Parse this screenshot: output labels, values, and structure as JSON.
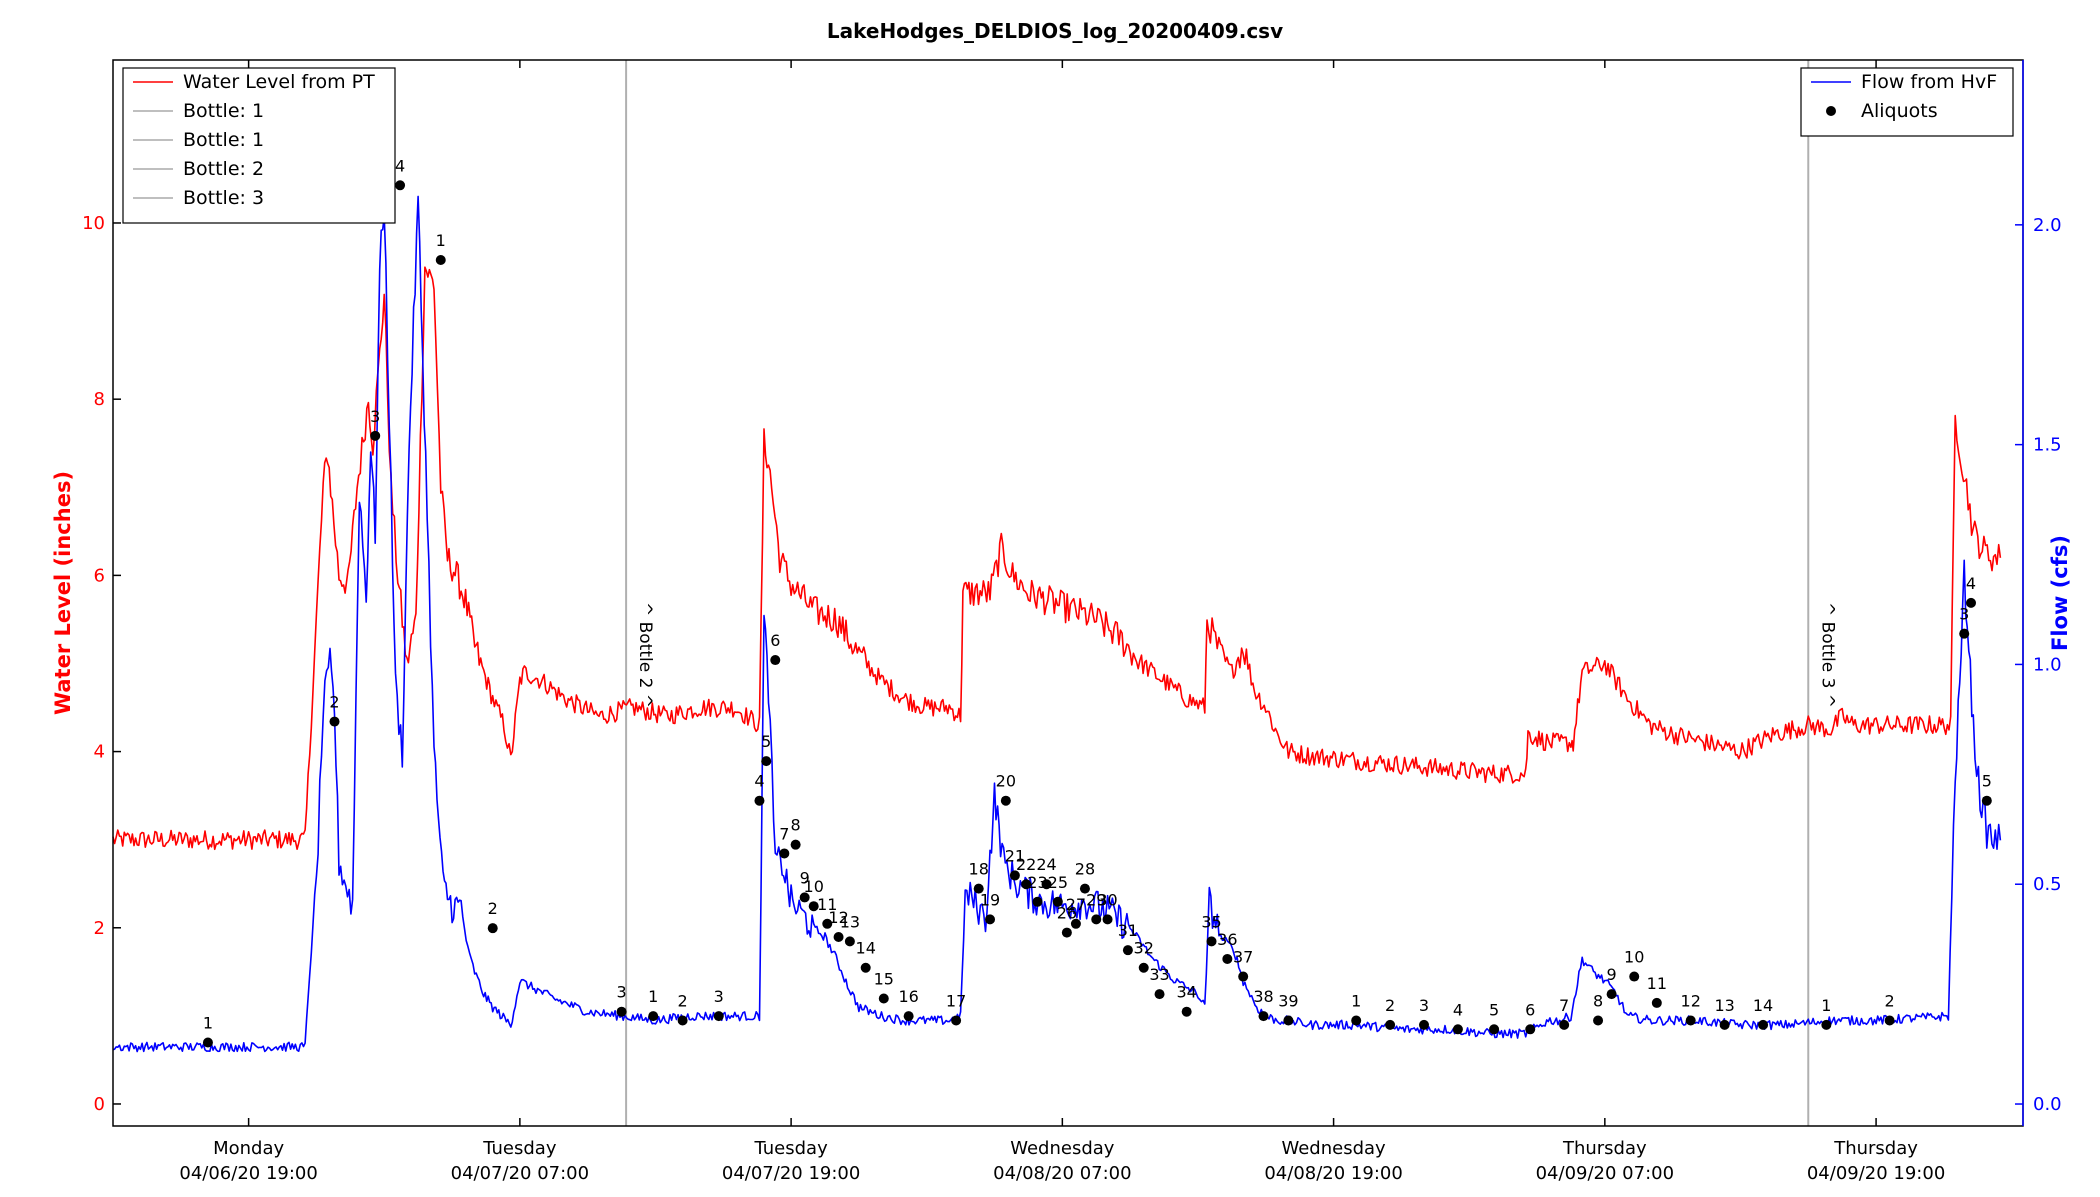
{
  "chart_data": {
    "type": "line",
    "title": "LakeHodges_DELDIOS_log_20200409.csv",
    "xlabel": "",
    "x_range": [
      "04/06/20 13:00",
      "04/10/20 00:30"
    ],
    "x_ticks": [
      {
        "day": "Monday",
        "date": "04/06/20 19:00",
        "t": 6
      },
      {
        "day": "Tuesday",
        "date": "04/07/20 07:00",
        "t": 18
      },
      {
        "day": "Tuesday",
        "date": "04/07/20 19:00",
        "t": 30
      },
      {
        "day": "Wednesday",
        "date": "04/08/20 07:00",
        "t": 42
      },
      {
        "day": "Wednesday",
        "date": "04/08/20 19:00",
        "t": 54
      },
      {
        "day": "Thursday",
        "date": "04/09/20 07:00",
        "t": 66
      },
      {
        "day": "Thursday",
        "date": "04/09/20 19:00",
        "t": 78
      }
    ],
    "y_left": {
      "label": "Water Level (inches)",
      "range": [
        -0.25,
        11.85
      ],
      "ticks": [
        "0",
        "2",
        "4",
        "6",
        "8",
        "10"
      ],
      "color": "#ff0000"
    },
    "y_right": {
      "label": "Flow (cfs)",
      "range": [
        -0.05,
        2.375
      ],
      "ticks": [
        "0.0",
        "0.5",
        "1.0",
        "1.5",
        "2.0"
      ],
      "color": "#0000ff"
    },
    "grid": false,
    "legend_left": {
      "placement": "top-left",
      "entries": [
        {
          "name": "Water Level from PT",
          "color": "#ff0000"
        },
        {
          "name": "Bottle: 1",
          "color": "#aaaaaa"
        },
        {
          "name": "Bottle: 1",
          "color": "#aaaaaa"
        },
        {
          "name": "Bottle: 2",
          "color": "#aaaaaa"
        },
        {
          "name": "Bottle: 3",
          "color": "#aaaaaa"
        }
      ]
    },
    "legend_right": {
      "placement": "top-right",
      "entries": [
        {
          "name": "Flow from HvF",
          "color": "#0000ff"
        },
        {
          "name": "Aliquots",
          "marker": "dot",
          "color": "#000000"
        }
      ]
    },
    "bottle_markers": [
      {
        "label": "^ Bottle 2 ^",
        "t": 22.7
      },
      {
        "label": "^ Bottle 3 ^",
        "t": 75.0
      }
    ],
    "series": [
      {
        "name": "Water Level from PT",
        "axis": "left",
        "color": "#ff0000",
        "t": [
          0,
          8.5,
          8.7,
          9.0,
          9.3,
          9.5,
          9.7,
          10.0,
          10.4,
          10.8,
          11.3,
          11.5,
          11.8,
          12.0,
          12.3,
          12.6,
          13.0,
          13.4,
          13.8,
          14.2,
          14.5,
          14.8,
          15.2,
          15.6,
          16.0,
          16.4,
          16.8,
          17.3,
          17.6,
          18.0,
          18.2,
          19.0,
          20.0,
          21.5,
          23.0,
          24.5,
          26.0,
          27.5,
          28.6,
          28.8,
          29.0,
          29.5,
          30.0,
          31.0,
          32.0,
          33.0,
          34.0,
          35.0,
          36.0,
          37.0,
          37.5,
          37.6,
          38.0,
          38.8,
          39.3,
          39.8,
          40.5,
          41.5,
          42.5,
          43.5,
          44.5,
          45.5,
          46.5,
          47.5,
          48.3,
          48.4,
          49.0,
          49.5,
          50.0,
          50.5,
          51.0,
          51.5,
          52.0,
          53.0,
          55.0,
          57.0,
          59.0,
          61.0,
          62.5,
          62.6,
          63.5,
          64.5,
          64.6,
          65.0,
          66.0,
          67.0,
          68.0,
          69.0,
          70.5,
          72.0,
          73.5,
          75.0,
          76.0,
          76.5,
          77.0,
          78.0,
          79.0,
          81.3,
          81.5,
          81.8,
          82.0,
          82.3,
          82.7,
          83.2,
          83.5
        ],
        "values": [
          3.0,
          3.0,
          4.0,
          5.5,
          7.0,
          7.4,
          6.8,
          6.0,
          5.9,
          7.0,
          8.0,
          7.5,
          8.5,
          9.2,
          7.0,
          6.0,
          5.0,
          5.5,
          9.5,
          9.3,
          7.0,
          6.2,
          6.0,
          5.7,
          5.2,
          4.9,
          4.6,
          4.3,
          3.9,
          4.8,
          4.9,
          4.8,
          4.6,
          4.4,
          4.5,
          4.4,
          4.5,
          4.5,
          4.3,
          7.5,
          7.3,
          6.2,
          5.9,
          5.6,
          5.5,
          5.1,
          4.8,
          4.6,
          4.5,
          4.5,
          4.4,
          5.8,
          5.8,
          5.8,
          6.3,
          6.0,
          5.8,
          5.7,
          5.6,
          5.5,
          5.3,
          5.0,
          4.8,
          4.6,
          4.5,
          5.5,
          5.1,
          4.9,
          5.2,
          4.7,
          4.5,
          4.2,
          4.0,
          3.95,
          3.9,
          3.85,
          3.8,
          3.75,
          3.75,
          4.2,
          4.1,
          4.1,
          4.1,
          4.9,
          5.0,
          4.6,
          4.3,
          4.2,
          4.1,
          4.0,
          4.2,
          4.3,
          4.25,
          4.4,
          4.3,
          4.3,
          4.3,
          4.3,
          7.8,
          7.3,
          7.0,
          6.5,
          6.3,
          6.2,
          6.2
        ]
      },
      {
        "name": "Flow from HvF",
        "axis": "right",
        "color": "#0000ff",
        "t": [
          0,
          8.5,
          8.7,
          9.0,
          9.3,
          9.6,
          9.8,
          10.0,
          10.3,
          10.6,
          10.9,
          11.2,
          11.4,
          11.6,
          11.8,
          12.0,
          12.3,
          12.5,
          12.8,
          13.1,
          13.5,
          13.9,
          14.2,
          14.6,
          15.0,
          15.4,
          15.7,
          16.0,
          16.4,
          16.8,
          17.2,
          17.6,
          18.0,
          19.5,
          21.0,
          22.5,
          24.0,
          25.5,
          27.0,
          28.6,
          28.8,
          29.0,
          29.3,
          29.6,
          30.0,
          30.5,
          31.0,
          31.5,
          32.0,
          32.5,
          33.0,
          34.0,
          35.0,
          36.0,
          37.0,
          37.5,
          37.7,
          38.0,
          38.6,
          39.0,
          39.4,
          40.0,
          41.0,
          42.0,
          43.0,
          44.0,
          45.0,
          46.0,
          47.0,
          48.0,
          48.3,
          48.5,
          49.0,
          49.6,
          50.0,
          50.6,
          51.0,
          51.5,
          52.0,
          53.0,
          55.0,
          57.0,
          59.0,
          61.0,
          62.5,
          63.5,
          64.0,
          64.5,
          65.0,
          65.5,
          66.0,
          66.5,
          67.0,
          68.0,
          70.0,
          72.0,
          74.0,
          76.0,
          78.0,
          81.2,
          81.5,
          81.7,
          81.9,
          82.1,
          82.3,
          82.6,
          82.9,
          83.2,
          83.5
        ],
        "values": [
          0.13,
          0.13,
          0.3,
          0.5,
          0.9,
          1.0,
          0.9,
          0.55,
          0.5,
          0.45,
          1.4,
          1.15,
          1.5,
          1.3,
          1.9,
          2.05,
          1.4,
          0.95,
          0.8,
          1.5,
          2.05,
          1.35,
          0.8,
          0.5,
          0.45,
          0.45,
          0.35,
          0.3,
          0.25,
          0.22,
          0.2,
          0.18,
          0.28,
          0.24,
          0.21,
          0.2,
          0.19,
          0.2,
          0.2,
          0.2,
          1.1,
          0.95,
          0.55,
          0.55,
          0.46,
          0.43,
          0.4,
          0.38,
          0.33,
          0.27,
          0.22,
          0.2,
          0.19,
          0.19,
          0.19,
          0.2,
          0.47,
          0.47,
          0.42,
          0.7,
          0.55,
          0.5,
          0.46,
          0.45,
          0.46,
          0.44,
          0.4,
          0.33,
          0.28,
          0.25,
          0.22,
          0.46,
          0.38,
          0.35,
          0.28,
          0.22,
          0.2,
          0.19,
          0.19,
          0.18,
          0.18,
          0.17,
          0.17,
          0.16,
          0.16,
          0.19,
          0.19,
          0.2,
          0.33,
          0.3,
          0.28,
          0.25,
          0.2,
          0.19,
          0.19,
          0.18,
          0.18,
          0.19,
          0.19,
          0.2,
          0.75,
          0.95,
          1.2,
          1.05,
          0.85,
          0.7,
          0.62,
          0.6,
          0.6
        ]
      }
    ],
    "aliquots": [
      {
        "label": "1",
        "t": 4.2,
        "v": 0.14
      },
      {
        "label": "2",
        "t": 9.8,
        "v": 0.87
      },
      {
        "label": "3",
        "t": 11.6,
        "v": 1.52
      },
      {
        "label": "4",
        "t": 12.7,
        "v": 2.09
      },
      {
        "label": "1",
        "t": 14.5,
        "v": 1.92
      },
      {
        "label": "2",
        "t": 16.8,
        "v": 0.4
      },
      {
        "label": "3",
        "t": 22.5,
        "v": 0.21
      },
      {
        "label": "1",
        "t": 23.9,
        "v": 0.2
      },
      {
        "label": "2",
        "t": 25.2,
        "v": 0.19
      },
      {
        "label": "3",
        "t": 26.8,
        "v": 0.2
      },
      {
        "label": "4",
        "t": 28.6,
        "v": 0.69
      },
      {
        "label": "5",
        "t": 28.9,
        "v": 0.78
      },
      {
        "label": "6",
        "t": 29.3,
        "v": 1.01
      },
      {
        "label": "7",
        "t": 29.7,
        "v": 0.57
      },
      {
        "label": "8",
        "t": 30.2,
        "v": 0.59
      },
      {
        "label": "9",
        "t": 30.6,
        "v": 0.47
      },
      {
        "label": "10",
        "t": 31.0,
        "v": 0.45
      },
      {
        "label": "11",
        "t": 31.6,
        "v": 0.41
      },
      {
        "label": "12",
        "t": 32.1,
        "v": 0.38
      },
      {
        "label": "13",
        "t": 32.6,
        "v": 0.37
      },
      {
        "label": "14",
        "t": 33.3,
        "v": 0.31
      },
      {
        "label": "15",
        "t": 34.1,
        "v": 0.24
      },
      {
        "label": "16",
        "t": 35.2,
        "v": 0.2
      },
      {
        "label": "17",
        "t": 37.3,
        "v": 0.19
      },
      {
        "label": "18",
        "t": 38.3,
        "v": 0.49
      },
      {
        "label": "19",
        "t": 38.8,
        "v": 0.42
      },
      {
        "label": "20",
        "t": 39.5,
        "v": 0.69
      },
      {
        "label": "21",
        "t": 39.9,
        "v": 0.52
      },
      {
        "label": "22",
        "t": 40.4,
        "v": 0.5
      },
      {
        "label": "23",
        "t": 40.9,
        "v": 0.46
      },
      {
        "label": "24",
        "t": 41.3,
        "v": 0.5
      },
      {
        "label": "25",
        "t": 41.8,
        "v": 0.46
      },
      {
        "label": "26",
        "t": 42.2,
        "v": 0.39
      },
      {
        "label": "27",
        "t": 42.6,
        "v": 0.41
      },
      {
        "label": "28",
        "t": 43.0,
        "v": 0.49
      },
      {
        "label": "29",
        "t": 43.5,
        "v": 0.42
      },
      {
        "label": "30",
        "t": 44.0,
        "v": 0.42
      },
      {
        "label": "31",
        "t": 44.9,
        "v": 0.35
      },
      {
        "label": "32",
        "t": 45.6,
        "v": 0.31
      },
      {
        "label": "33",
        "t": 46.3,
        "v": 0.25
      },
      {
        "label": "34",
        "t": 47.5,
        "v": 0.21
      },
      {
        "label": "35",
        "t": 48.6,
        "v": 0.37
      },
      {
        "label": "36",
        "t": 49.3,
        "v": 0.33
      },
      {
        "label": "37",
        "t": 50.0,
        "v": 0.29
      },
      {
        "label": "38",
        "t": 50.9,
        "v": 0.2
      },
      {
        "label": "39",
        "t": 52.0,
        "v": 0.19
      },
      {
        "label": "1",
        "t": 55.0,
        "v": 0.19
      },
      {
        "label": "2",
        "t": 56.5,
        "v": 0.18
      },
      {
        "label": "3",
        "t": 58.0,
        "v": 0.18
      },
      {
        "label": "4",
        "t": 59.5,
        "v": 0.17
      },
      {
        "label": "5",
        "t": 61.1,
        "v": 0.17
      },
      {
        "label": "6",
        "t": 62.7,
        "v": 0.17
      },
      {
        "label": "7",
        "t": 64.2,
        "v": 0.18
      },
      {
        "label": "8",
        "t": 65.7,
        "v": 0.19
      },
      {
        "label": "9",
        "t": 66.3,
        "v": 0.25
      },
      {
        "label": "10",
        "t": 67.3,
        "v": 0.29
      },
      {
        "label": "11",
        "t": 68.3,
        "v": 0.23
      },
      {
        "label": "12",
        "t": 69.8,
        "v": 0.19
      },
      {
        "label": "13",
        "t": 71.3,
        "v": 0.18
      },
      {
        "label": "14",
        "t": 73.0,
        "v": 0.18
      },
      {
        "label": "1",
        "t": 75.8,
        "v": 0.18
      },
      {
        "label": "2",
        "t": 78.6,
        "v": 0.19
      },
      {
        "label": "3",
        "t": 81.9,
        "v": 1.07
      },
      {
        "label": "4",
        "t": 82.2,
        "v": 1.14
      },
      {
        "label": "5",
        "t": 82.9,
        "v": 0.69
      }
    ]
  }
}
